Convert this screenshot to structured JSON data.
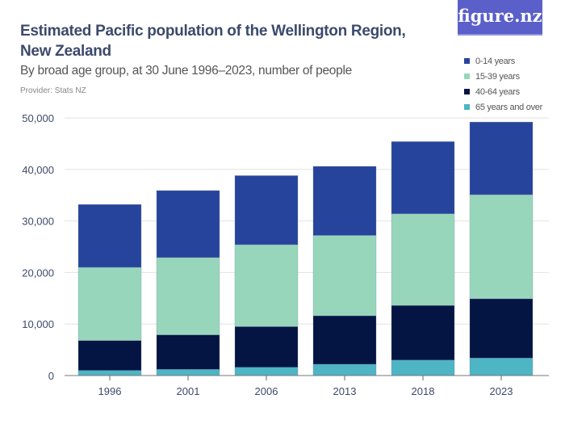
{
  "title": "Estimated Pacific population of the Wellington Region, New Zealand",
  "subtitle": "By broad age group, at 30 June 1996–2023, number of people",
  "provider": "Provider: Stats NZ",
  "logo": "figure.nz",
  "chart_data": {
    "type": "bar",
    "stacked": true,
    "title": "Estimated Pacific population of the Wellington Region, New Zealand",
    "categories": [
      "1996",
      "2001",
      "2006",
      "2013",
      "2018",
      "2023"
    ],
    "ylim": [
      0,
      50000
    ],
    "yticks": [
      0,
      10000,
      20000,
      30000,
      40000,
      50000
    ],
    "ytick_labels": [
      "0",
      "10,000",
      "20,000",
      "30,000",
      "40,000",
      "50,000"
    ],
    "grid": true,
    "legend": "top-right",
    "series": [
      {
        "name": "65 years and over",
        "color": "#4db5c4",
        "values": [
          1000,
          1200,
          1600,
          2200,
          3000,
          3400
        ]
      },
      {
        "name": "40-64 years",
        "color": "#041443",
        "values": [
          5800,
          6700,
          7900,
          9400,
          10600,
          11500
        ]
      },
      {
        "name": "15-39 years",
        "color": "#97d6bb",
        "values": [
          14200,
          15000,
          15900,
          15600,
          17800,
          20200
        ]
      },
      {
        "name": "0-14 years",
        "color": "#27449c",
        "values": [
          12200,
          13000,
          13400,
          13400,
          14000,
          14100
        ]
      }
    ]
  }
}
